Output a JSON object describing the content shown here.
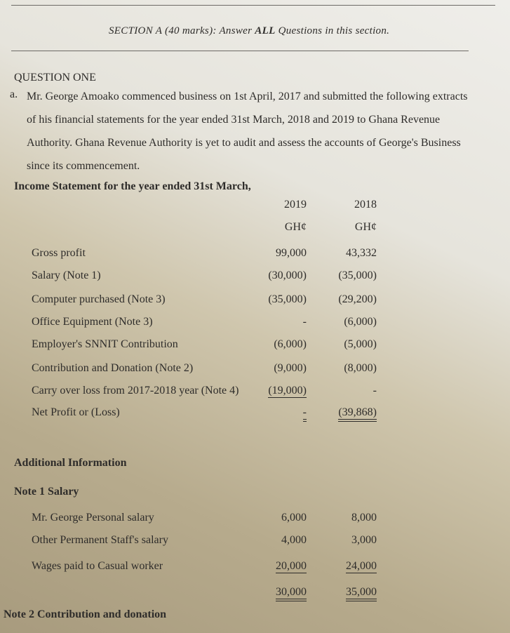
{
  "section_header": {
    "prefix": "SECTION A (40 marks): Answer ",
    "emphasis": "ALL",
    "suffix": " Questions in this section."
  },
  "question_title": "QUESTION ONE",
  "item_marker": "a.",
  "intro_lines": [
    "Mr. George Amoako commenced business on 1st April, 2017 and submitted the following extracts",
    "of his financial statements for the year ended 31st March, 2018 and 2019 to Ghana Revenue",
    "Authority. Ghana Revenue Authority is yet to audit and assess the accounts of George's Business",
    "since its commencement."
  ],
  "statement_title": "Income Statement for the year ended 31st March,",
  "columns": [
    {
      "year": "2019",
      "currency": "GH¢"
    },
    {
      "year": "2018",
      "currency": "GH¢"
    }
  ],
  "income_rows": [
    {
      "label": "Gross profit",
      "v2019": "99,000",
      "v2018": "43,332"
    },
    {
      "label": "Salary (Note 1)",
      "v2019": "(30,000)",
      "v2018": "(35,000)"
    },
    {
      "label": "Computer purchased (Note 3)",
      "v2019": "(35,000)",
      "v2018": "(29,200)"
    },
    {
      "label": "Office Equipment (Note 3)",
      "v2019": "-",
      "v2018": "(6,000)"
    },
    {
      "label": "Employer's SNNIT Contribution",
      "v2019": "(6,000)",
      "v2018": "(5,000)"
    },
    {
      "label": "Contribution and Donation (Note 2)",
      "v2019": "(9,000)",
      "v2018": "(8,000)"
    },
    {
      "label": "Carry over loss from 2017-2018 year (Note 4)",
      "v2019": "(19,000)",
      "v2018": "-"
    },
    {
      "label": "Net Profit or (Loss)",
      "v2019": "-",
      "v2018": "(39,868)"
    }
  ],
  "additional_title": "Additional Information",
  "note1": {
    "title": "Note 1 Salary",
    "rows": [
      {
        "label": "Mr. George Personal salary",
        "v2019": "6,000",
        "v2018": "8,000"
      },
      {
        "label": "Other Permanent Staff's salary",
        "v2019": "4,000",
        "v2018": "3,000"
      },
      {
        "label": "Wages paid to Casual worker",
        "v2019": "20,000",
        "v2018": "24,000"
      }
    ],
    "totals": {
      "v2019": "30,000",
      "v2018": "35,000"
    }
  },
  "note2_title": "Note 2 Contribution and donation"
}
